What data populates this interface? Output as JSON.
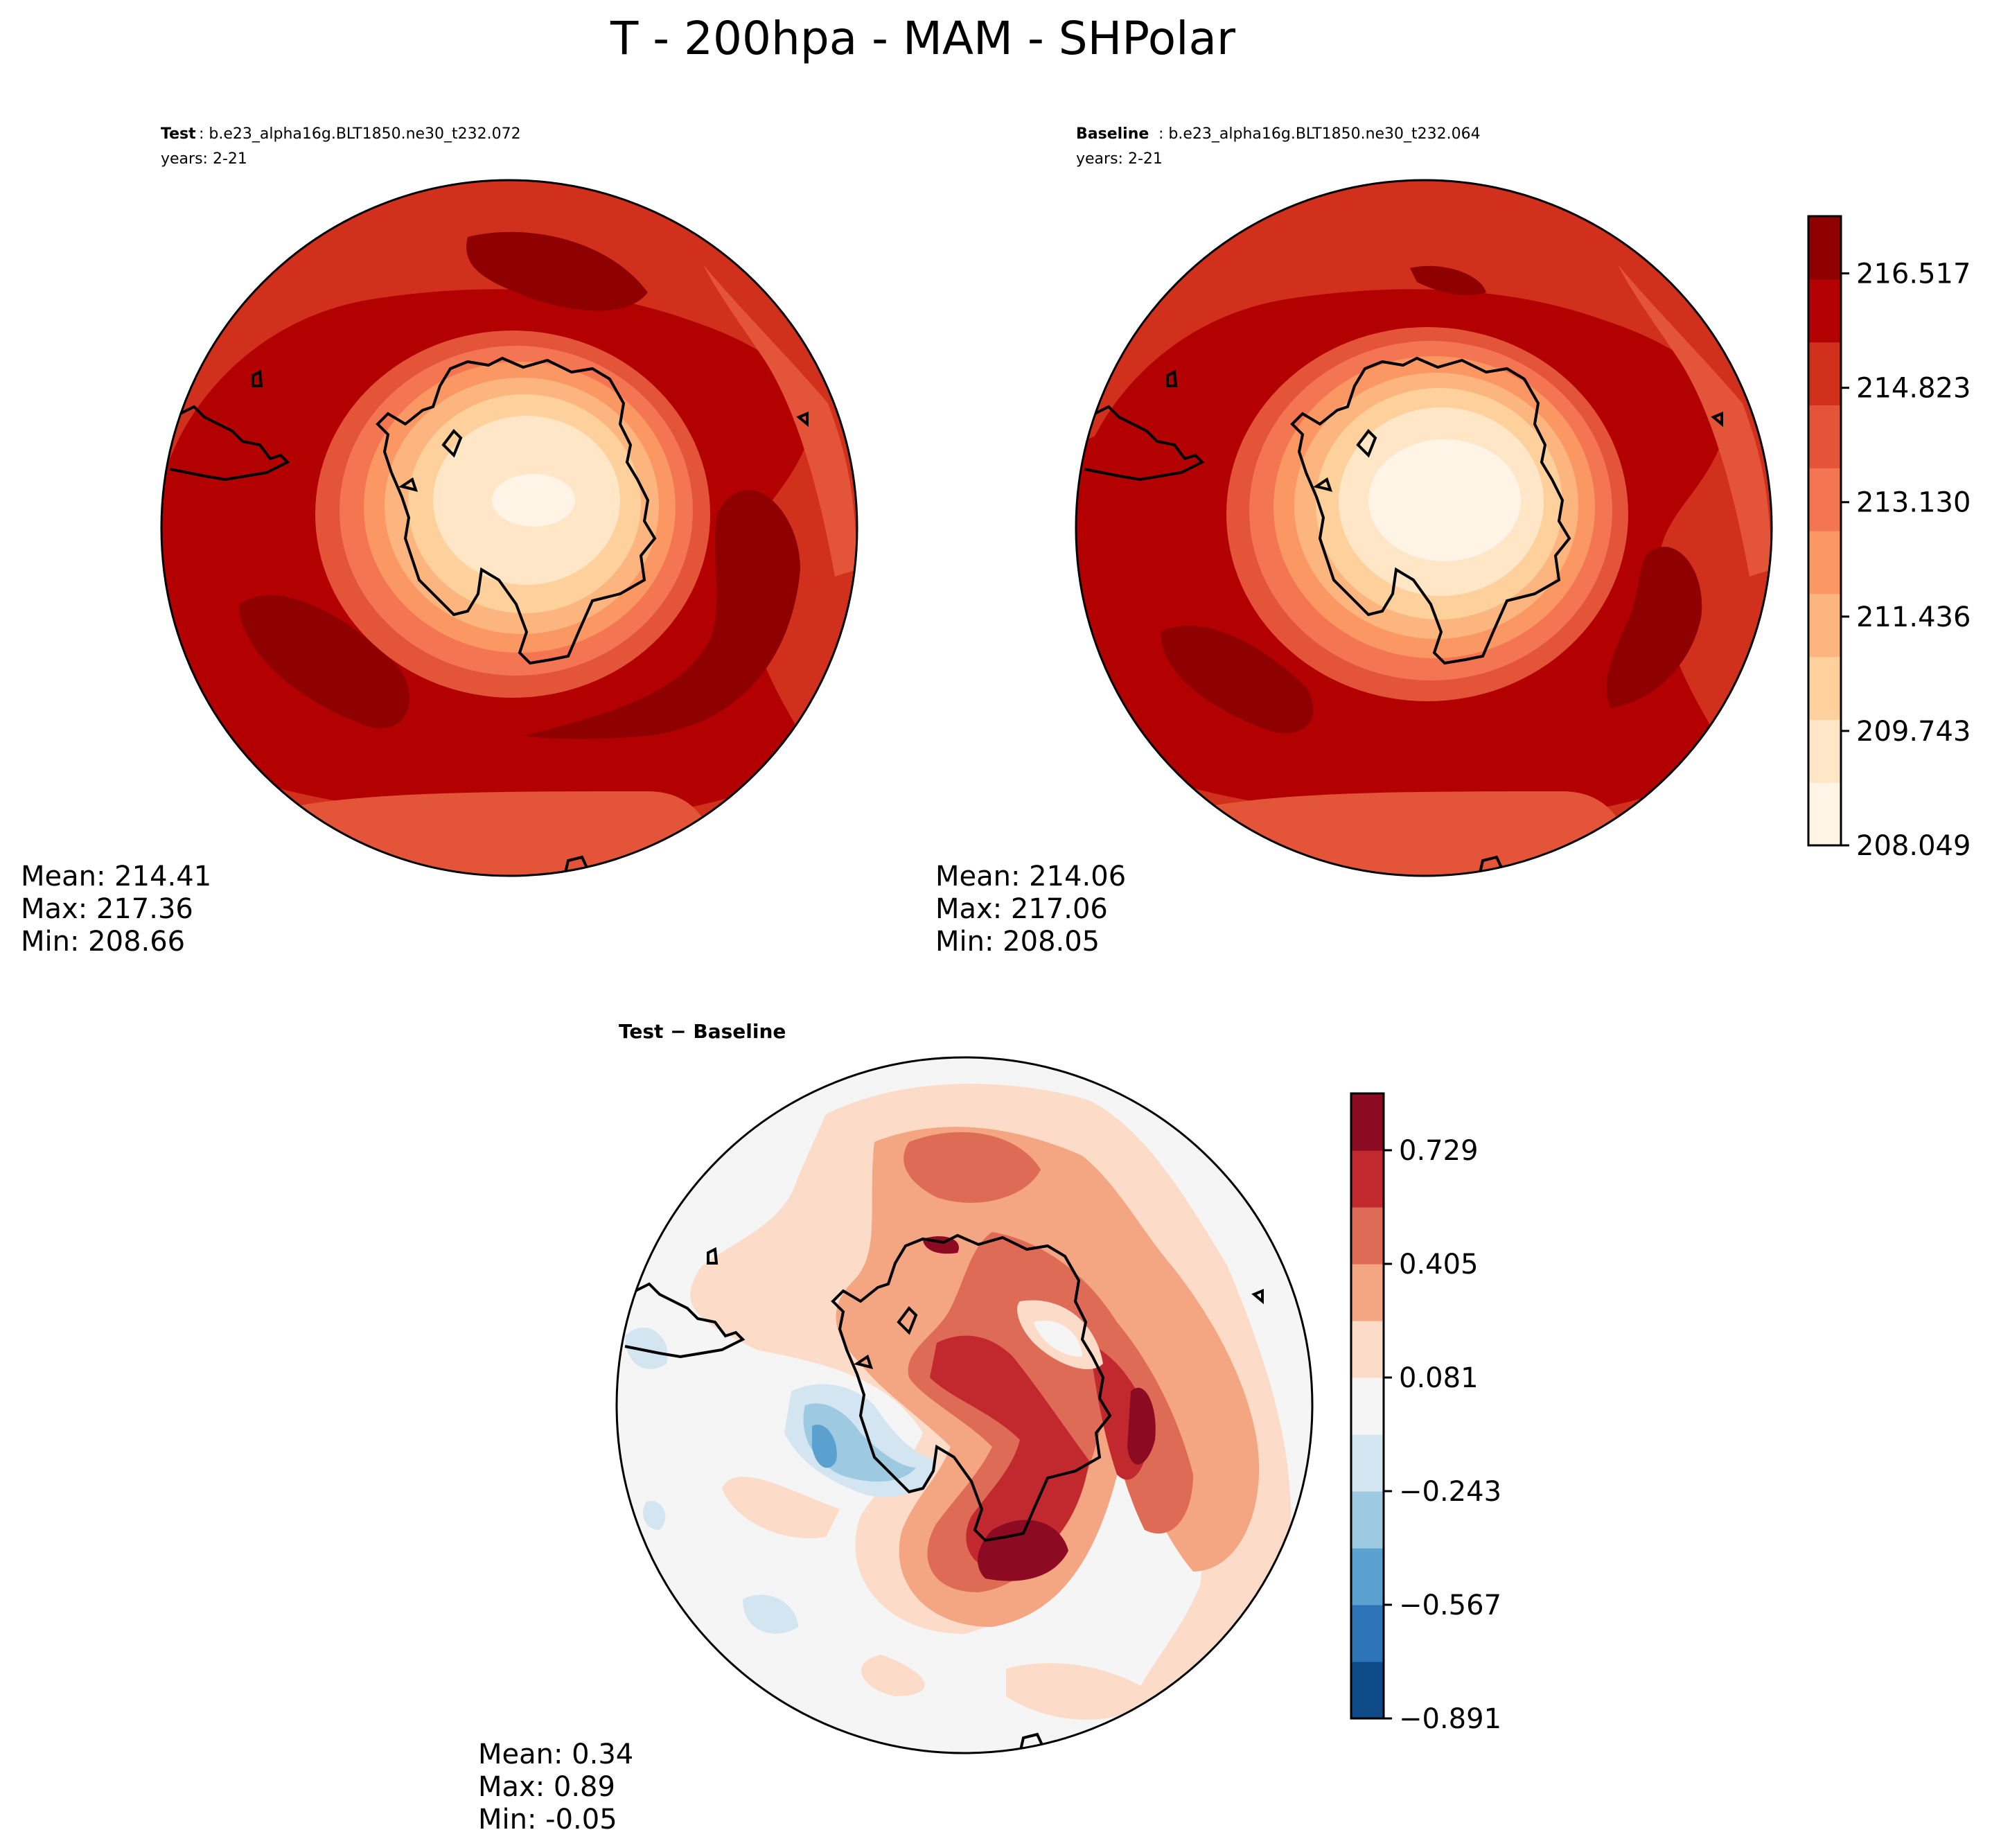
{
  "figure": {
    "title": "T - 200hpa - MAM - SHPolar"
  },
  "chart_data": [
    {
      "type": "heatmap",
      "projection": "south-polar-stereographic",
      "panel": "test",
      "label": "Test",
      "case": ": b.e23_alpha16g.BLT1850.ne30_t232.072",
      "years": "years: 2-21",
      "stats": {
        "mean": "Mean: 214.41",
        "max": "Max: 217.36",
        "min": "Min: 208.66"
      },
      "stats_values": {
        "mean": 214.41,
        "max": 217.36,
        "min": 208.66
      },
      "colormap": "OrRd-like",
      "levels": [
        208.049,
        208.896,
        209.743,
        210.589,
        211.436,
        212.283,
        213.13,
        213.976,
        214.823,
        215.67,
        216.517
      ],
      "colors": [
        "#fff4e6",
        "#fee6c6",
        "#fdd09c",
        "#fcb57e",
        "#fb9762",
        "#f47552",
        "#e45439",
        "#d1301c",
        "#b30000",
        "#8f0000"
      ]
    },
    {
      "type": "heatmap",
      "projection": "south-polar-stereographic",
      "panel": "baseline",
      "label": "Baseline",
      "case": ": b.e23_alpha16g.BLT1850.ne30_t232.064",
      "years": "years: 2-21",
      "stats": {
        "mean": "Mean: 214.06",
        "max": "Max: 217.06",
        "min": "Min: 208.05"
      },
      "stats_values": {
        "mean": 214.06,
        "max": 217.06,
        "min": 208.05
      },
      "colorbar": {
        "tick_labels": [
          "216.517",
          "214.823",
          "213.130",
          "211.436",
          "209.743",
          "208.049"
        ],
        "tick_values": [
          216.517,
          214.823,
          213.13,
          211.436,
          209.743,
          208.049
        ],
        "range": [
          208.049,
          217.364
        ]
      }
    },
    {
      "type": "heatmap",
      "projection": "south-polar-stereographic",
      "panel": "difference",
      "title": "Test − Baseline",
      "stats": {
        "mean": "Mean:  0.34",
        "max": "Max:  0.89",
        "min": "Min: -0.05"
      },
      "stats_values": {
        "mean": 0.34,
        "max": 0.89,
        "min": -0.05
      },
      "colormap": "RdBu_r",
      "colors": [
        "#0d4a87",
        "#2c74b5",
        "#5aa1cf",
        "#9ecae1",
        "#d3e5f0",
        "#f5f5f5",
        "#fcdcc8",
        "#f4a582",
        "#de6b55",
        "#c2292e",
        "#8c0b23"
      ],
      "colorbar": {
        "tick_labels": [
          "0.729",
          "0.405",
          "0.081",
          "−0.243",
          "−0.567",
          "−0.891"
        ],
        "tick_values": [
          0.729,
          0.405,
          0.081,
          -0.243,
          -0.567,
          -0.891
        ],
        "range": [
          -0.891,
          0.891
        ]
      }
    }
  ]
}
